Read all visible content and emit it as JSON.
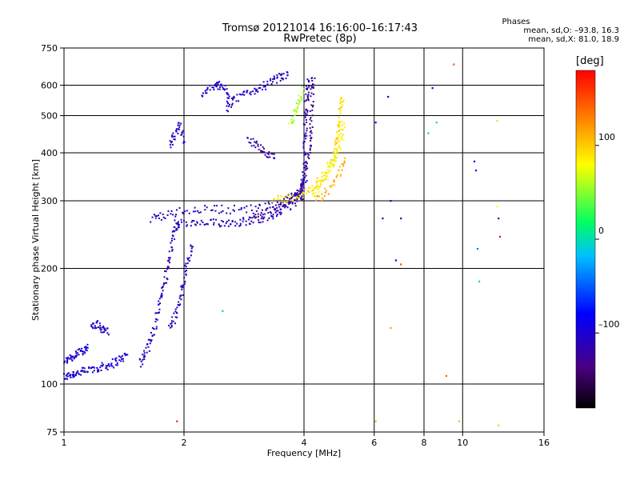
{
  "header": {
    "title_line1": "Tromsø 20121014 16:16:00–16:17:43",
    "title_line2": "RwPretec (8p)"
  },
  "stats": {
    "heading": "Phases",
    "line_o": "mean, sd,O: –93.8, 16.3",
    "line_x": "mean, sd,X:  81.0, 18.9"
  },
  "colorbar": {
    "unit": "[deg]",
    "min": -180,
    "max": 180,
    "ticks": [
      {
        "value": 100,
        "label": "100"
      },
      {
        "value": 0,
        "label": "0"
      },
      {
        "value": -100,
        "label": "–100"
      }
    ]
  },
  "chart_data": {
    "type": "scatter",
    "xlabel": "Frequency [MHz]",
    "ylabel": "Stationary phase Virtual Height [km]",
    "xscale": "log",
    "yscale": "log",
    "xlim": [
      1,
      16
    ],
    "ylim": [
      75,
      750
    ],
    "xticks": [
      {
        "value": 1,
        "label": "1"
      },
      {
        "value": 2,
        "label": "2"
      },
      {
        "value": 4,
        "label": "4"
      },
      {
        "value": 6,
        "label": "6"
      },
      {
        "value": 8,
        "label": "8"
      },
      {
        "value": 10,
        "label": "10"
      },
      {
        "value": 16,
        "label": "16"
      }
    ],
    "yticks": [
      {
        "value": 75,
        "label": "75"
      },
      {
        "value": 100,
        "label": "100"
      },
      {
        "value": 200,
        "label": "200"
      },
      {
        "value": 300,
        "label": "300"
      },
      {
        "value": 400,
        "label": "400"
      },
      {
        "value": 500,
        "label": "500"
      },
      {
        "value": 600,
        "label": "600"
      },
      {
        "value": 750,
        "label": "750"
      }
    ],
    "grid": true,
    "color_by": "phase",
    "traces": [
      {
        "phase": -100,
        "points": [
          [
            1.0,
            104
          ],
          [
            1.04,
            106
          ],
          [
            1.08,
            107
          ],
          [
            1.13,
            108
          ],
          [
            1.2,
            110
          ],
          [
            1.26,
            111
          ],
          [
            1.32,
            113
          ],
          [
            1.38,
            116
          ],
          [
            1.45,
            119
          ]
        ]
      },
      {
        "phase": -100,
        "points": [
          [
            1.0,
            115
          ],
          [
            1.04,
            117
          ],
          [
            1.08,
            120
          ],
          [
            1.12,
            123
          ],
          [
            1.15,
            125
          ]
        ]
      },
      {
        "phase": -105,
        "points": [
          [
            1.17,
            140
          ],
          [
            1.21,
            143
          ],
          [
            1.25,
            139
          ],
          [
            1.29,
            137
          ]
        ]
      },
      {
        "phase": -110,
        "points": [
          [
            1.55,
            113
          ],
          [
            1.6,
            120
          ],
          [
            1.65,
            130
          ],
          [
            1.7,
            145
          ],
          [
            1.74,
            165
          ],
          [
            1.78,
            180
          ],
          [
            1.82,
            200
          ],
          [
            1.86,
            225
          ],
          [
            1.9,
            255
          ],
          [
            1.95,
            262
          ]
        ]
      },
      {
        "phase": -105,
        "points": [
          [
            1.85,
            140
          ],
          [
            1.9,
            150
          ],
          [
            1.95,
            165
          ],
          [
            2.0,
            185
          ],
          [
            2.05,
            210
          ],
          [
            2.1,
            235
          ]
        ]
      },
      {
        "phase": -110,
        "points": [
          [
            1.9,
            262
          ],
          [
            2.1,
            261
          ],
          [
            2.3,
            262
          ],
          [
            2.5,
            263
          ],
          [
            2.7,
            264
          ],
          [
            2.9,
            266
          ],
          [
            3.1,
            270
          ],
          [
            3.3,
            274
          ],
          [
            3.5,
            282
          ],
          [
            3.7,
            292
          ],
          [
            3.9,
            305
          ],
          [
            4.0,
            320
          ]
        ]
      },
      {
        "phase": -108,
        "points": [
          [
            1.65,
            270
          ],
          [
            1.8,
            275
          ],
          [
            2.0,
            283
          ],
          [
            2.3,
            286
          ],
          [
            2.6,
            285
          ],
          [
            3.0,
            286
          ],
          [
            3.4,
            293
          ],
          [
            3.7,
            305
          ],
          [
            3.9,
            320
          ],
          [
            4.05,
            345
          ]
        ]
      },
      {
        "phase": -125,
        "points": [
          [
            3.0,
            275
          ],
          [
            3.3,
            282
          ],
          [
            3.6,
            294
          ],
          [
            3.85,
            312
          ],
          [
            4.0,
            340
          ],
          [
            4.1,
            380
          ],
          [
            4.15,
            430
          ],
          [
            4.18,
            500
          ],
          [
            4.2,
            580
          ],
          [
            4.22,
            640
          ]
        ]
      },
      {
        "phase": -115,
        "points": [
          [
            3.95,
            300
          ],
          [
            4.0,
            340
          ],
          [
            4.02,
            400
          ],
          [
            4.03,
            460
          ],
          [
            4.05,
            520
          ],
          [
            4.08,
            580
          ],
          [
            4.1,
            620
          ]
        ]
      },
      {
        "phase": -105,
        "points": [
          [
            2.55,
            520
          ],
          [
            2.7,
            550
          ],
          [
            2.9,
            575
          ],
          [
            3.1,
            590
          ],
          [
            3.3,
            610
          ],
          [
            3.5,
            630
          ],
          [
            3.65,
            640
          ]
        ]
      },
      {
        "phase": -100,
        "points": [
          [
            2.2,
            560
          ],
          [
            2.35,
            590
          ],
          [
            2.45,
            600
          ],
          [
            2.55,
            580
          ],
          [
            2.6,
            540
          ]
        ]
      },
      {
        "phase": -100,
        "points": [
          [
            1.85,
            420
          ],
          [
            1.9,
            445
          ],
          [
            1.95,
            470
          ],
          [
            2.0,
            420
          ]
        ]
      },
      {
        "phase": -120,
        "points": [
          [
            2.9,
            430
          ],
          [
            3.05,
            420
          ],
          [
            3.2,
            400
          ],
          [
            3.4,
            395
          ]
        ]
      },
      {
        "phase": 90,
        "points": [
          [
            3.35,
            300
          ],
          [
            3.6,
            304
          ],
          [
            3.9,
            310
          ],
          [
            4.2,
            322
          ],
          [
            4.4,
            340
          ],
          [
            4.6,
            365
          ],
          [
            4.75,
            395
          ],
          [
            4.85,
            430
          ],
          [
            4.9,
            470
          ],
          [
            4.95,
            520
          ],
          [
            5.0,
            560
          ]
        ]
      },
      {
        "phase": 80,
        "points": [
          [
            4.2,
            310
          ],
          [
            4.4,
            330
          ],
          [
            4.6,
            355
          ],
          [
            4.8,
            390
          ],
          [
            4.95,
            430
          ],
          [
            5.05,
            480
          ]
        ]
      },
      {
        "phase": 60,
        "points": [
          [
            3.7,
            480
          ],
          [
            3.8,
            510
          ],
          [
            3.9,
            550
          ],
          [
            4.0,
            590
          ]
        ]
      },
      {
        "phase": 110,
        "points": [
          [
            4.3,
            300
          ],
          [
            4.6,
            320
          ],
          [
            4.9,
            350
          ],
          [
            5.1,
            390
          ]
        ]
      }
    ],
    "points": [
      {
        "f": 1.92,
        "h": 80,
        "phase": 170
      },
      {
        "f": 2.5,
        "h": 155,
        "phase": -10
      },
      {
        "f": 6.05,
        "h": 480,
        "phase": -80
      },
      {
        "f": 6.5,
        "h": 560,
        "phase": -90
      },
      {
        "f": 6.3,
        "h": 270,
        "phase": -110
      },
      {
        "f": 6.6,
        "h": 300,
        "phase": -100
      },
      {
        "f": 7.0,
        "h": 270,
        "phase": -110
      },
      {
        "f": 6.8,
        "h": 210,
        "phase": -90
      },
      {
        "f": 7.0,
        "h": 205,
        "phase": 150
      },
      {
        "f": 6.05,
        "h": 80,
        "phase": 110
      },
      {
        "f": 6.6,
        "h": 140,
        "phase": 120
      },
      {
        "f": 8.4,
        "h": 590,
        "phase": -100
      },
      {
        "f": 8.2,
        "h": 450,
        "phase": -10
      },
      {
        "f": 8.6,
        "h": 480,
        "phase": 0
      },
      {
        "f": 9.1,
        "h": 105,
        "phase": 140
      },
      {
        "f": 9.5,
        "h": 680,
        "phase": 150
      },
      {
        "f": 9.8,
        "h": 80,
        "phase": 110
      },
      {
        "f": 10.7,
        "h": 380,
        "phase": -90
      },
      {
        "f": 10.8,
        "h": 360,
        "phase": -80
      },
      {
        "f": 11.0,
        "h": 185,
        "phase": -10
      },
      {
        "f": 10.9,
        "h": 225,
        "phase": -40
      },
      {
        "f": 12.2,
        "h": 290,
        "phase": 80
      },
      {
        "f": 12.3,
        "h": 270,
        "phase": -130
      },
      {
        "f": 12.4,
        "h": 242,
        "phase": 175
      },
      {
        "f": 12.2,
        "h": 485,
        "phase": 60
      },
      {
        "f": 12.3,
        "h": 78,
        "phase": 100
      }
    ]
  }
}
